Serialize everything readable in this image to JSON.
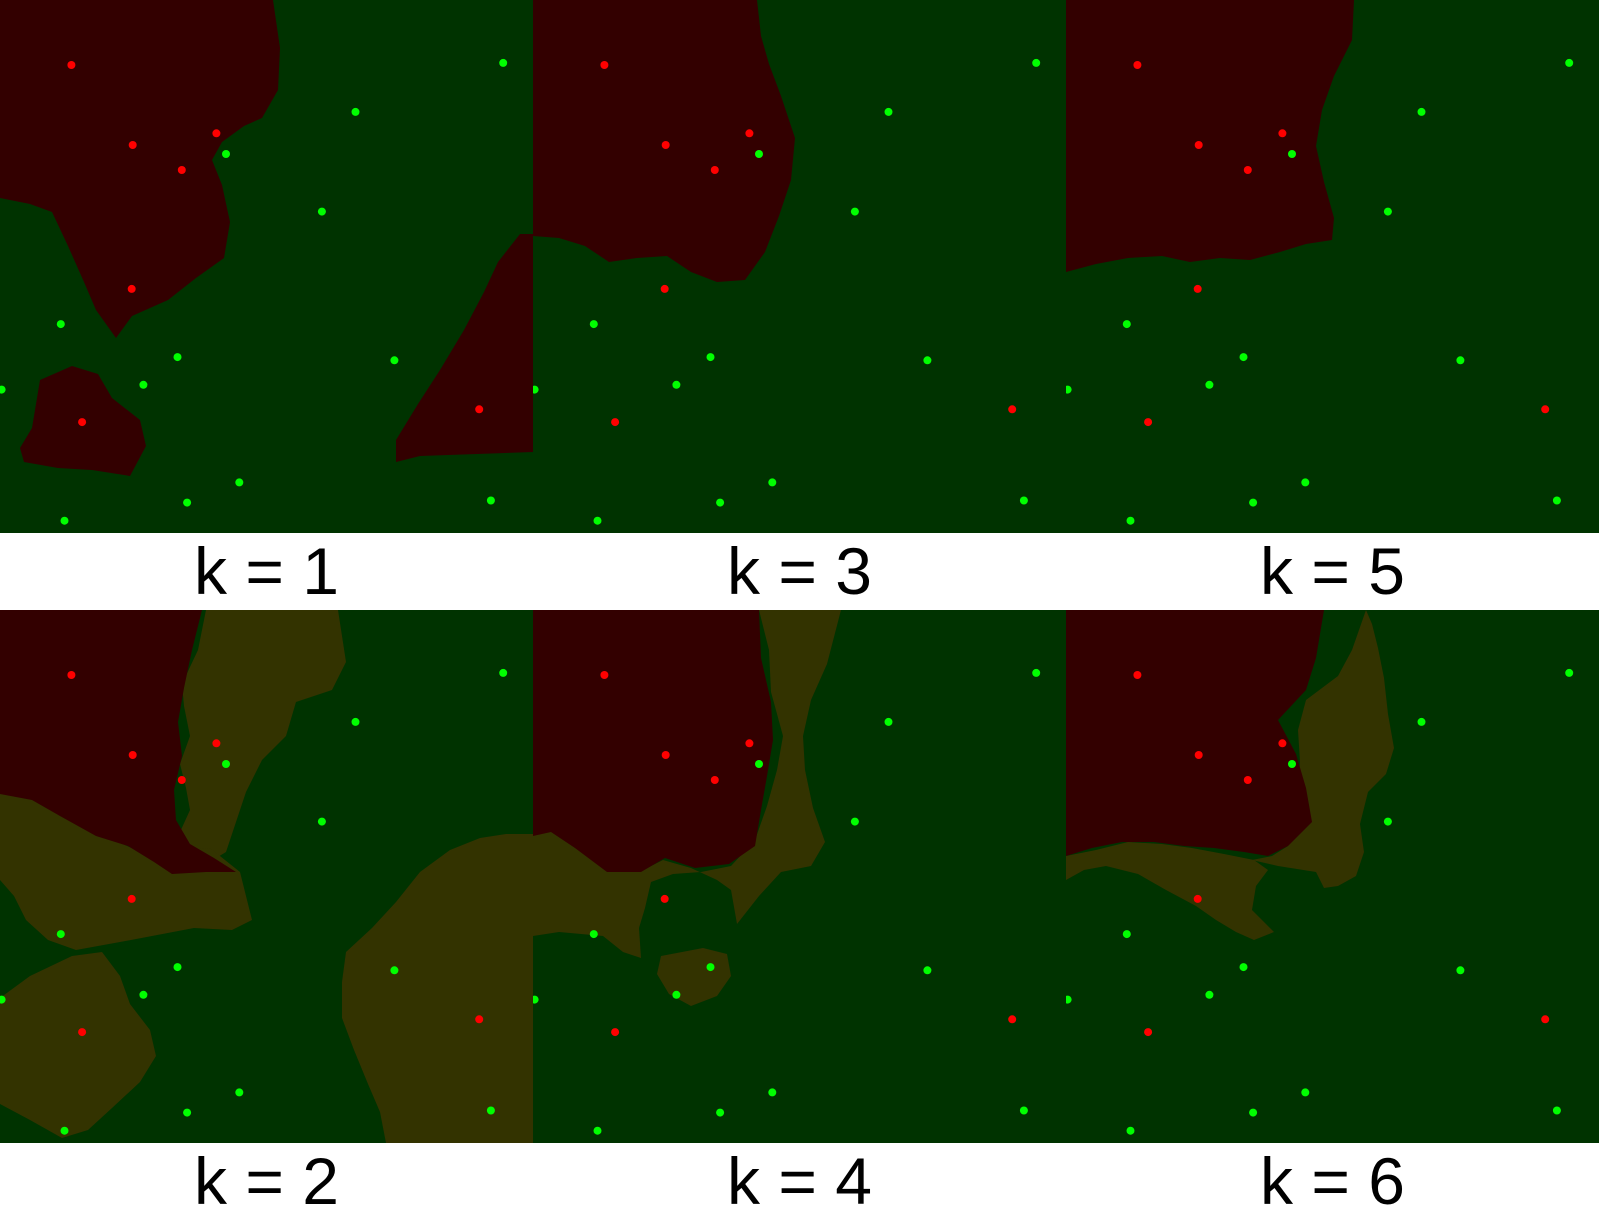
{
  "colors": {
    "background": "#ffffff",
    "class_red_region": "#330000",
    "class_green_region": "#003300",
    "tie_region": "#333300",
    "red_point": "#ff0000",
    "green_point": "#00ff00",
    "caption_text": "#000000"
  },
  "panels": [
    {
      "label": "k = 1",
      "k": 1
    },
    {
      "label": "k = 3",
      "k": 3
    },
    {
      "label": "k = 5",
      "k": 5
    },
    {
      "label": "k = 2",
      "k": 2
    },
    {
      "label": "k = 4",
      "k": 4
    },
    {
      "label": "k = 6",
      "k": 6
    }
  ],
  "points": {
    "red": [
      [
        0.134,
        0.122
      ],
      [
        0.249,
        0.272
      ],
      [
        0.406,
        0.25
      ],
      [
        0.341,
        0.319
      ],
      [
        0.247,
        0.542
      ],
      [
        0.154,
        0.792
      ],
      [
        0.899,
        0.768
      ]
    ],
    "green": [
      [
        0.944,
        0.118
      ],
      [
        0.667,
        0.21
      ],
      [
        0.424,
        0.289
      ],
      [
        0.604,
        0.397
      ],
      [
        0.114,
        0.608
      ],
      [
        0.333,
        0.67
      ],
      [
        0.74,
        0.676
      ],
      [
        0.003,
        0.731
      ],
      [
        0.269,
        0.722
      ],
      [
        0.449,
        0.905
      ],
      [
        0.351,
        0.943
      ],
      [
        0.121,
        0.977
      ],
      [
        0.921,
        0.939
      ]
    ]
  }
}
